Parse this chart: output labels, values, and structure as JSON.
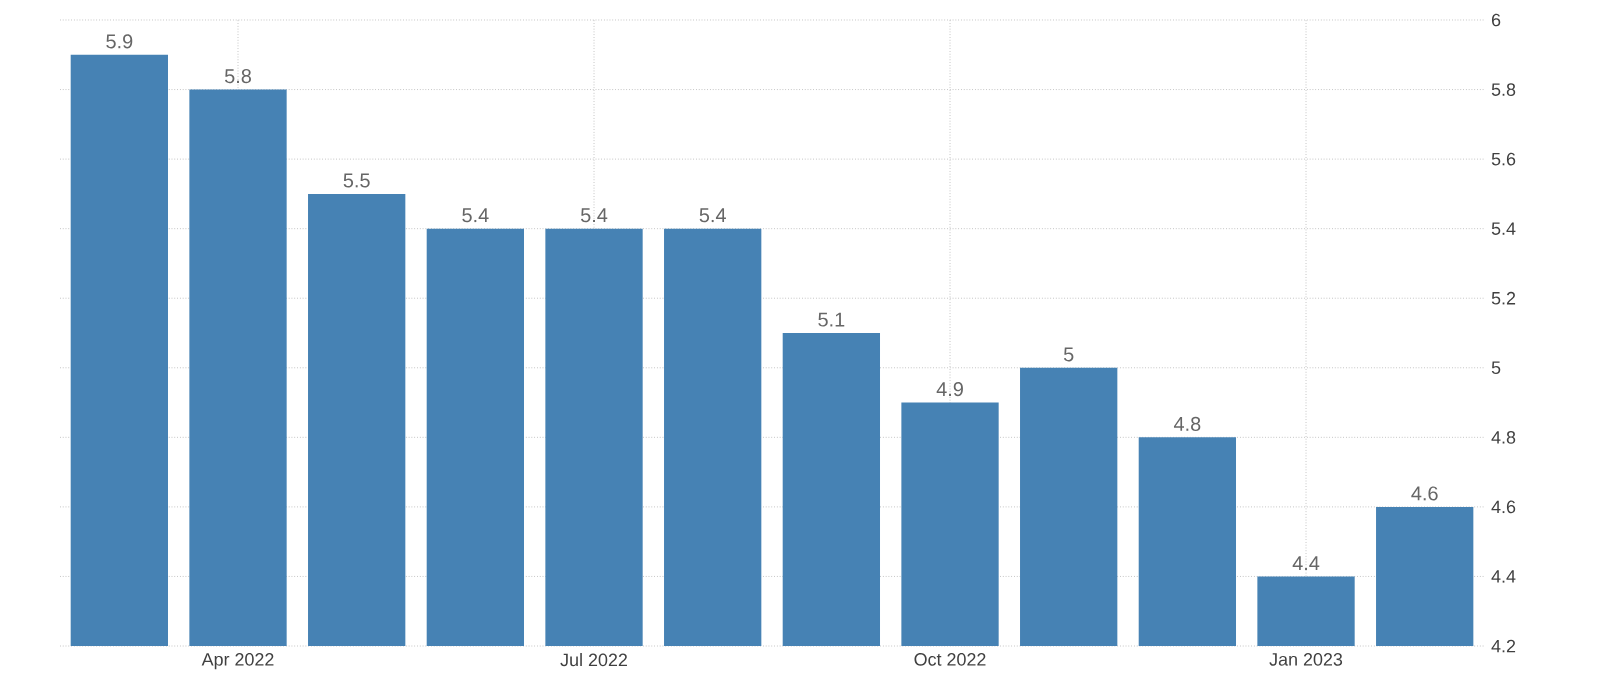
{
  "chart_data": {
    "type": "bar",
    "categories": [
      null,
      "Apr 2022",
      null,
      null,
      "Jul 2022",
      null,
      null,
      "Oct 2022",
      null,
      null,
      "Jan 2023",
      null
    ],
    "values": [
      5.9,
      5.8,
      5.5,
      5.4,
      5.4,
      5.4,
      5.1,
      4.9,
      5,
      4.8,
      4.4,
      4.6
    ],
    "color": "#4682b4",
    "ylim": [
      4.2,
      6
    ],
    "yticks": [
      4.2,
      4.4,
      4.6,
      4.8,
      5,
      5.2,
      5.4,
      5.6,
      5.8,
      6
    ],
    "grid": true,
    "data_labels": true
  }
}
